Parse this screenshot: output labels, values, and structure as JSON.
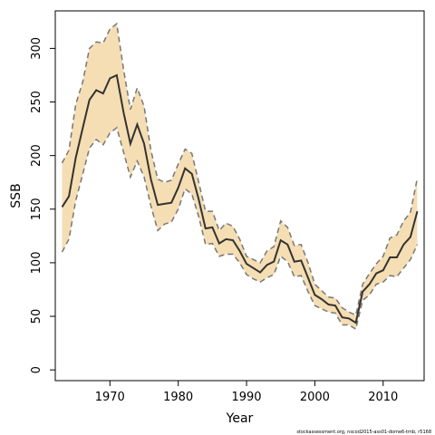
{
  "chart_data": {
    "type": "area",
    "title": "",
    "xlabel": "Year",
    "ylabel": "SSB",
    "xlim": [
      1962,
      2016
    ],
    "ylim": [
      -10,
      335
    ],
    "xticks": [
      1970,
      1980,
      1990,
      2000,
      2010
    ],
    "yticks": [
      0,
      50,
      100,
      150,
      200,
      250,
      300
    ],
    "grid": false,
    "legend": "none",
    "colors": {
      "band": "#f5deb3",
      "line": "#333333",
      "bound": "#777777"
    },
    "x": [
      1963,
      1964,
      1965,
      1966,
      1967,
      1968,
      1969,
      1970,
      1971,
      1972,
      1973,
      1974,
      1975,
      1976,
      1977,
      1978,
      1979,
      1980,
      1981,
      1982,
      1983,
      1984,
      1985,
      1986,
      1987,
      1988,
      1989,
      1990,
      1991,
      1992,
      1993,
      1994,
      1995,
      1996,
      1997,
      1998,
      1999,
      2000,
      2001,
      2002,
      2003,
      2004,
      2005,
      2006,
      2007,
      2008,
      2009,
      2010,
      2011,
      2012,
      2013,
      2014,
      2015
    ],
    "series": [
      {
        "role": "estimate",
        "values": [
          152,
          162,
          198,
          225,
          252,
          261,
          258,
          272,
          275,
          240,
          211,
          229,
          211,
          178,
          154,
          155,
          156,
          170,
          188,
          183,
          159,
          132,
          133,
          118,
          122,
          121,
          111,
          99,
          95,
          91,
          98,
          101,
          121,
          117,
          101,
          102,
          86,
          70,
          66,
          61,
          60,
          49,
          48,
          44,
          73,
          80,
          90,
          93,
          105,
          105,
          117,
          124,
          148
        ]
      },
      {
        "role": "upper",
        "values": [
          193,
          205,
          248,
          268,
          300,
          306,
          305,
          318,
          323,
          280,
          243,
          263,
          246,
          205,
          178,
          175,
          177,
          192,
          206,
          202,
          175,
          148,
          148,
          130,
          137,
          134,
          122,
          106,
          103,
          100,
          111,
          115,
          139,
          133,
          116,
          117,
          100,
          80,
          74,
          68,
          67,
          58,
          54,
          51,
          80,
          90,
          99,
          106,
          123,
          126,
          139,
          147,
          179
        ]
      },
      {
        "role": "lower",
        "values": [
          110,
          122,
          158,
          182,
          207,
          215,
          210,
          221,
          226,
          203,
          180,
          195,
          180,
          153,
          130,
          136,
          138,
          150,
          169,
          164,
          143,
          117,
          118,
          106,
          108,
          108,
          100,
          89,
          85,
          82,
          86,
          89,
          106,
          101,
          87,
          88,
          73,
          60,
          57,
          54,
          53,
          42,
          42,
          38,
          65,
          70,
          80,
          82,
          88,
          87,
          95,
          103,
          117
        ]
      }
    ]
  },
  "footnote": "stockassessment.org, nscod2015-ass01-dome6-tmb, r5168"
}
